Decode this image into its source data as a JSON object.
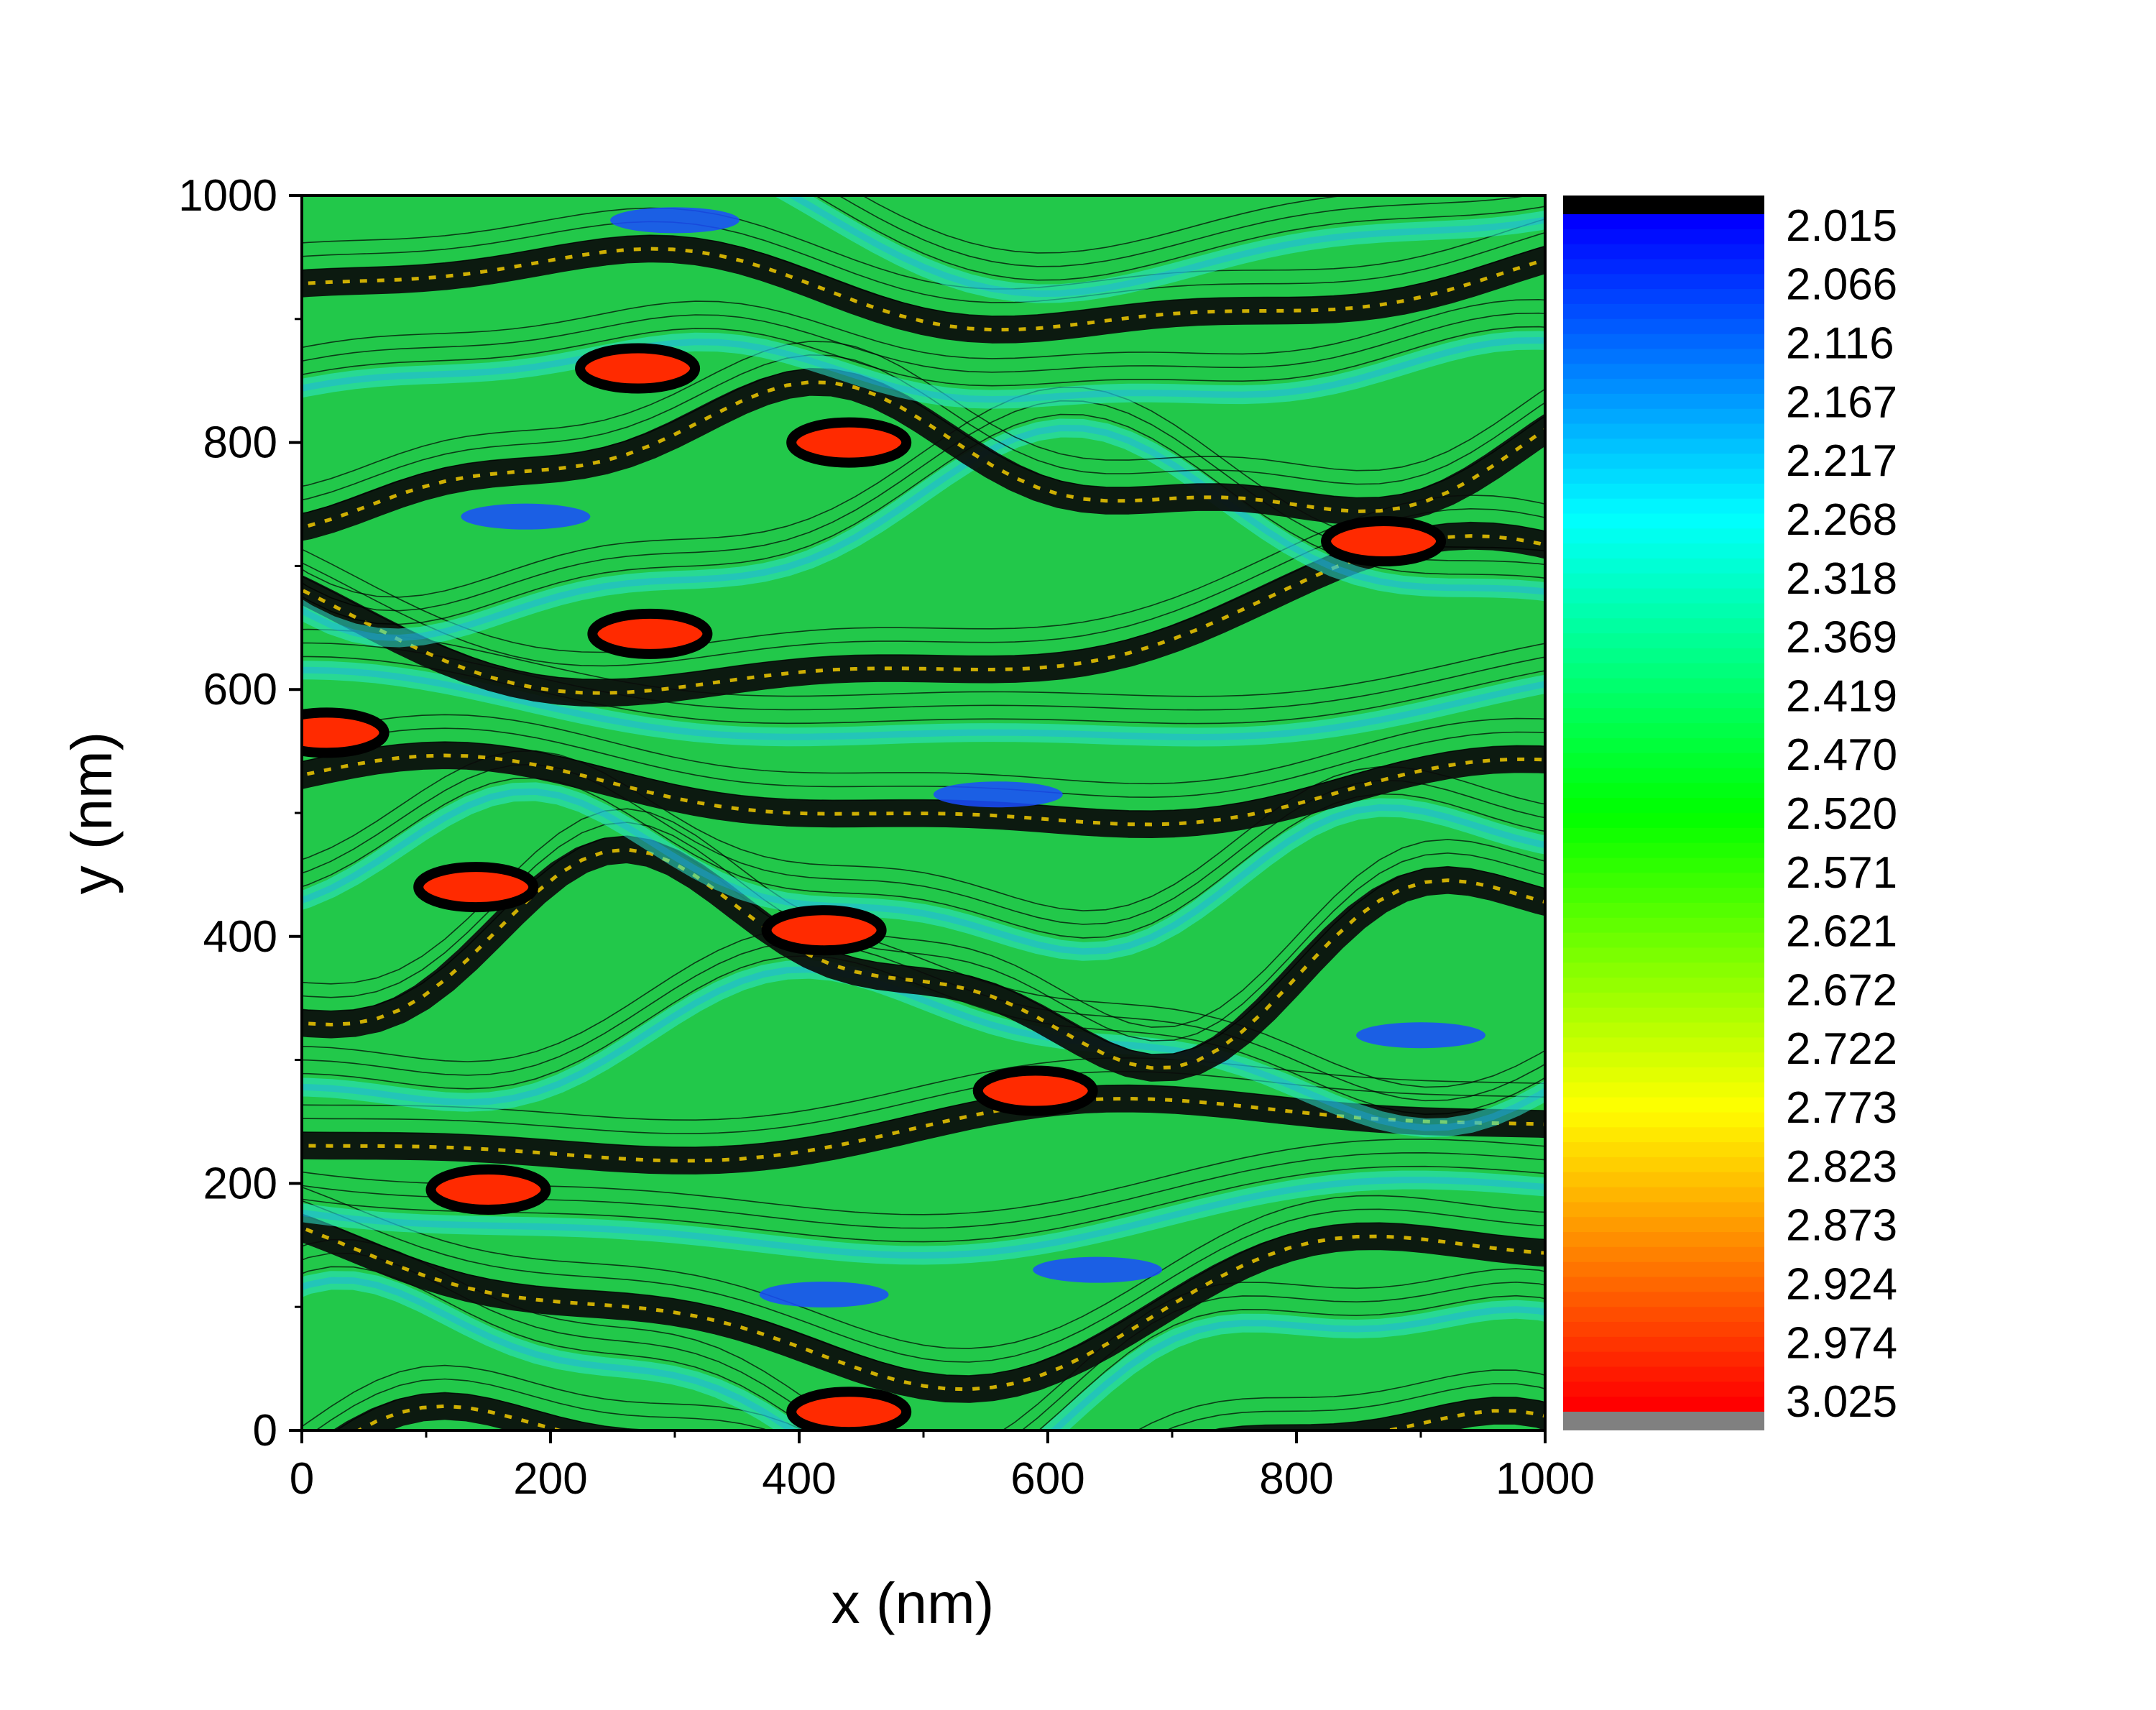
{
  "chart_data": {
    "type": "heatmap",
    "subtype": "filled contour map with black contour lines",
    "xlabel": "x (nm)",
    "ylabel": "y (nm)",
    "xlim": [
      0,
      1000
    ],
    "ylim": [
      0,
      1000
    ],
    "x_ticks": [
      0,
      200,
      400,
      600,
      800,
      1000
    ],
    "y_ticks": [
      0,
      200,
      400,
      600,
      800,
      1000
    ],
    "x_tick_labels": [
      "0",
      "200",
      "400",
      "600",
      "800",
      "1000"
    ],
    "y_tick_labels": [
      "0",
      "200",
      "400",
      "600",
      "800",
      "1000"
    ],
    "colorbar": {
      "levels": [
        2.015,
        2.066,
        2.116,
        2.167,
        2.217,
        2.268,
        2.318,
        2.369,
        2.419,
        2.47,
        2.52,
        2.571,
        2.621,
        2.672,
        2.722,
        2.773,
        2.823,
        2.873,
        2.924,
        2.974,
        3.025
      ],
      "labels": [
        "2.015",
        "2.066",
        "2.116",
        "2.167",
        "2.217",
        "2.268",
        "2.318",
        "2.369",
        "2.419",
        "2.470",
        "2.520",
        "2.571",
        "2.621",
        "2.672",
        "2.722",
        "2.773",
        "2.823",
        "2.873",
        "2.924",
        "2.974",
        "3.025"
      ],
      "under_color": "#000000",
      "over_color": "#808080",
      "colormap": [
        "#0000ff",
        "#00ffff",
        "#00ff00",
        "#ffff00",
        "#ff0000"
      ],
      "placement": "right"
    },
    "hotspots_red": [
      [
        140,
        440
      ],
      [
        420,
        405
      ],
      [
        280,
        645
      ],
      [
        270,
        860
      ],
      [
        440,
        800
      ],
      [
        870,
        720
      ],
      [
        590,
        275
      ],
      [
        150,
        195
      ],
      [
        440,
        15
      ],
      [
        20,
        565
      ]
    ],
    "hotspots_blue": [
      [
        180,
        740
      ],
      [
        560,
        515
      ],
      [
        300,
        980
      ],
      [
        420,
        110
      ],
      [
        640,
        130
      ],
      [
        900,
        320
      ]
    ],
    "grid": false
  }
}
